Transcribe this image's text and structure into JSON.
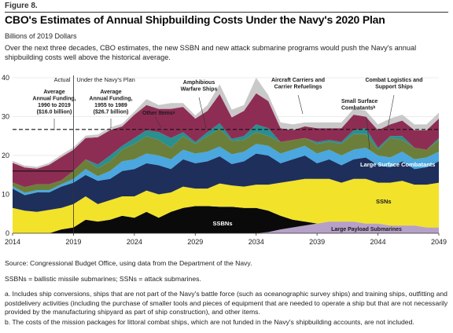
{
  "figure_label": "Figure 8.",
  "notes": {
    "source": "Source: Congressional Budget Office, using data from the Department of the Navy.",
    "abbreviations": "SSBNs = ballistic missile submarines; SSNs = attack submarines.",
    "a": "a. Includes ship conversions, ships that are not part of the Navy's battle force (such as oceanographic survey ships) and training ships, outfitting and postdelivery activities (including the purchase of smaller tools and pieces of equipment that are needed to operate a ship but that are not necessarily provided by the manufacturing shipyard as part of ship construction), and other items.",
    "b": "b. The costs of the mission packages for littoral combat ships, which are not funded in the Navy's shipbuilding accounts, are not included."
  },
  "chart_data": {
    "type": "area",
    "title": "CBO's Estimates of Annual Shipbuilding Costs Under the Navy's 2020 Plan",
    "subtitle": "Billions of 2019 Dollars",
    "description": "Over the next three decades, CBO estimates, the new SSBN and new attack submarine programs would push the Navy's annual shipbuilding costs well above the historical average.",
    "x": [
      2014,
      2015,
      2016,
      2017,
      2018,
      2019,
      2020,
      2021,
      2022,
      2023,
      2024,
      2025,
      2026,
      2027,
      2028,
      2029,
      2030,
      2031,
      2032,
      2033,
      2034,
      2035,
      2036,
      2037,
      2038,
      2039,
      2040,
      2041,
      2042,
      2043,
      2044,
      2045,
      2046,
      2047,
      2048,
      2049
    ],
    "xlim": [
      2014,
      2049
    ],
    "ylim": [
      0,
      40
    ],
    "xticks": [
      2014,
      2019,
      2024,
      2029,
      2034,
      2039,
      2044,
      2049
    ],
    "yticks": [
      0,
      10,
      20,
      30,
      40
    ],
    "series": [
      {
        "name": "Large Payload Submarines",
        "color": "#b6a0c8",
        "values": [
          0,
          0,
          0,
          0,
          0,
          0,
          0,
          0,
          0,
          0,
          0,
          0,
          0,
          0,
          0,
          0,
          0,
          0,
          0,
          0,
          0,
          0.3,
          1.0,
          1.5,
          2.0,
          2.5,
          3.0,
          3.0,
          3.0,
          2.5,
          2.5,
          2.0,
          2.0,
          2.0,
          1.5,
          1.5
        ]
      },
      {
        "name": "SSBNs",
        "color": "#0a0a0a",
        "values": [
          0,
          0,
          0,
          0,
          1.0,
          1.5,
          3.5,
          3.0,
          3.5,
          4.5,
          4.0,
          5.5,
          4.0,
          5.5,
          6.5,
          7.0,
          7.0,
          6.8,
          6.8,
          6.5,
          6.5,
          5.5,
          3.5,
          2.0,
          1.0,
          0,
          0,
          0,
          0,
          0,
          0,
          0,
          0,
          0,
          0,
          0
        ]
      },
      {
        "name": "SSNs",
        "color": "#f2e22a",
        "values": [
          6.5,
          5.8,
          5.5,
          6.0,
          5.5,
          6.0,
          6.0,
          4.5,
          5.0,
          5.0,
          5.5,
          5.5,
          6.0,
          5.0,
          5.5,
          4.5,
          4.5,
          6.0,
          5.5,
          5.5,
          6.0,
          6.7,
          8.5,
          10.0,
          11.0,
          11.5,
          11.0,
          10.0,
          11.0,
          11.5,
          10.5,
          11.0,
          11.5,
          10.5,
          11.0,
          11.5
        ]
      },
      {
        "name": "Large Surface Combatants",
        "color": "#1e2f5c",
        "values": [
          5.0,
          4.0,
          5.0,
          4.5,
          5.5,
          5.5,
          5.5,
          6.0,
          5.5,
          6.5,
          7.0,
          7.0,
          7.5,
          6.0,
          7.0,
          6.5,
          7.0,
          7.0,
          5.5,
          6.5,
          8.0,
          7.5,
          5.0,
          5.5,
          6.0,
          4.0,
          5.0,
          4.5,
          5.0,
          5.5,
          4.5,
          4.0,
          5.0,
          4.0,
          4.5,
          5.5
        ]
      },
      {
        "name": "Small Surface Combatants",
        "color": "#4aa7df",
        "values": [
          0.6,
          0.6,
          0.6,
          0.6,
          0.6,
          1.0,
          1.5,
          1.2,
          2.0,
          2.5,
          2.5,
          2.5,
          2.5,
          2.5,
          2.5,
          2.5,
          2.5,
          2.5,
          2.5,
          2.5,
          2.5,
          2.5,
          2.5,
          2.5,
          2.5,
          2.5,
          2.5,
          2.5,
          2.5,
          2.5,
          2.5,
          2.5,
          2.5,
          2.5,
          2.5,
          2.5
        ]
      },
      {
        "name": "Combat Logistics and Support Ships",
        "color": "#6b7f3a",
        "values": [
          1.0,
          1.5,
          1.5,
          1.5,
          1.0,
          2.0,
          2.5,
          2.0,
          2.5,
          3.0,
          4.0,
          4.5,
          4.0,
          3.0,
          3.5,
          2.5,
          4.0,
          4.5,
          3.5,
          3.0,
          3.0,
          2.5,
          3.0,
          2.5,
          2.0,
          2.5,
          2.0,
          3.0,
          4.0,
          3.5,
          1.5,
          5.0,
          3.0,
          3.0,
          2.0,
          3.0
        ]
      },
      {
        "name": "Amphibious Warfare Ships",
        "color": "#2a8f8f",
        "values": [
          0,
          0,
          0,
          0,
          0,
          0,
          0,
          1.0,
          1.5,
          1.0,
          1.5,
          1.5,
          2.0,
          2.5,
          1.0,
          0.5,
          1.0,
          1.5,
          0.5,
          1.0,
          2.0,
          2.0,
          0,
          0,
          0,
          0.5,
          0.5,
          0.5,
          1.0,
          1.5,
          0.5,
          0.5,
          1.0,
          0,
          0,
          0.5
        ]
      },
      {
        "name": "Aircraft Carriers and Carrier Refuelings",
        "color": "#8e2d54",
        "values": [
          5.0,
          5.0,
          4.0,
          5.0,
          6.0,
          5.5,
          5.5,
          7.0,
          6.5,
          5.0,
          6.0,
          6.5,
          6.0,
          7.5,
          6.5,
          6.0,
          5.5,
          7.5,
          5.5,
          6.5,
          8.0,
          7.0,
          3.5,
          2.5,
          3.0,
          3.5,
          3.0,
          3.5,
          4.0,
          3.0,
          4.5,
          3.0,
          4.0,
          4.5,
          5.0,
          5.0
        ]
      },
      {
        "name": "Other Items",
        "color": "#c9c9c9",
        "values": [
          0.5,
          0.5,
          0.5,
          0.5,
          0.6,
          0.6,
          0.6,
          0.7,
          0.7,
          0.7,
          0.8,
          1.5,
          1.0,
          1.5,
          1.0,
          0.8,
          1.5,
          2.5,
          2.0,
          1.5,
          4.0,
          1.5,
          1.5,
          1.5,
          1.0,
          1.5,
          1.5,
          1.5,
          1.5,
          1.5,
          1.5,
          1.5,
          1.5,
          1.5,
          1.5,
          1.5
        ]
      }
    ],
    "reference_lines": [
      {
        "name": "Average Annual Funding, 1990 to 2019",
        "value": 16.0,
        "style": "solid",
        "from": 2014,
        "to": 2019
      },
      {
        "name": "Average Annual Funding, 1955 to 1989",
        "value": 26.7,
        "style": "dashed",
        "from": 2014,
        "to": 2049
      }
    ],
    "period_divider": {
      "x": 2019,
      "left_label": "Actual",
      "right_label": "Under the Navy's Plan"
    },
    "annotations": [
      {
        "key": "avg_recent",
        "lines": [
          "Average",
          "Annual Funding,",
          "1990 to 2019",
          "($16.0 billion)"
        ]
      },
      {
        "key": "avg_hist",
        "lines": [
          "Average",
          "Annual Funding,",
          "1955 to 1989",
          "($26.7 billion)"
        ]
      },
      {
        "key": "other",
        "lines": [
          "Other Itemsᵃ"
        ]
      },
      {
        "key": "amphib",
        "lines": [
          "Amphibious",
          "Warfare Ships"
        ]
      },
      {
        "key": "carriers",
        "lines": [
          "Aircraft Carriers and",
          "Carrier Refuelings"
        ]
      },
      {
        "key": "logistics",
        "lines": [
          "Combat Logistics and",
          "Support Ships"
        ]
      },
      {
        "key": "small",
        "lines": [
          "Small Surface",
          "Combatantsᵇ"
        ]
      },
      {
        "key": "large",
        "lines": [
          "Large Surface Combatants"
        ]
      },
      {
        "key": "ssns",
        "lines": [
          "SSNs"
        ]
      },
      {
        "key": "ssbns",
        "lines": [
          "SSBNs"
        ]
      },
      {
        "key": "lps",
        "lines": [
          "Large Payload Submarines"
        ]
      }
    ]
  }
}
